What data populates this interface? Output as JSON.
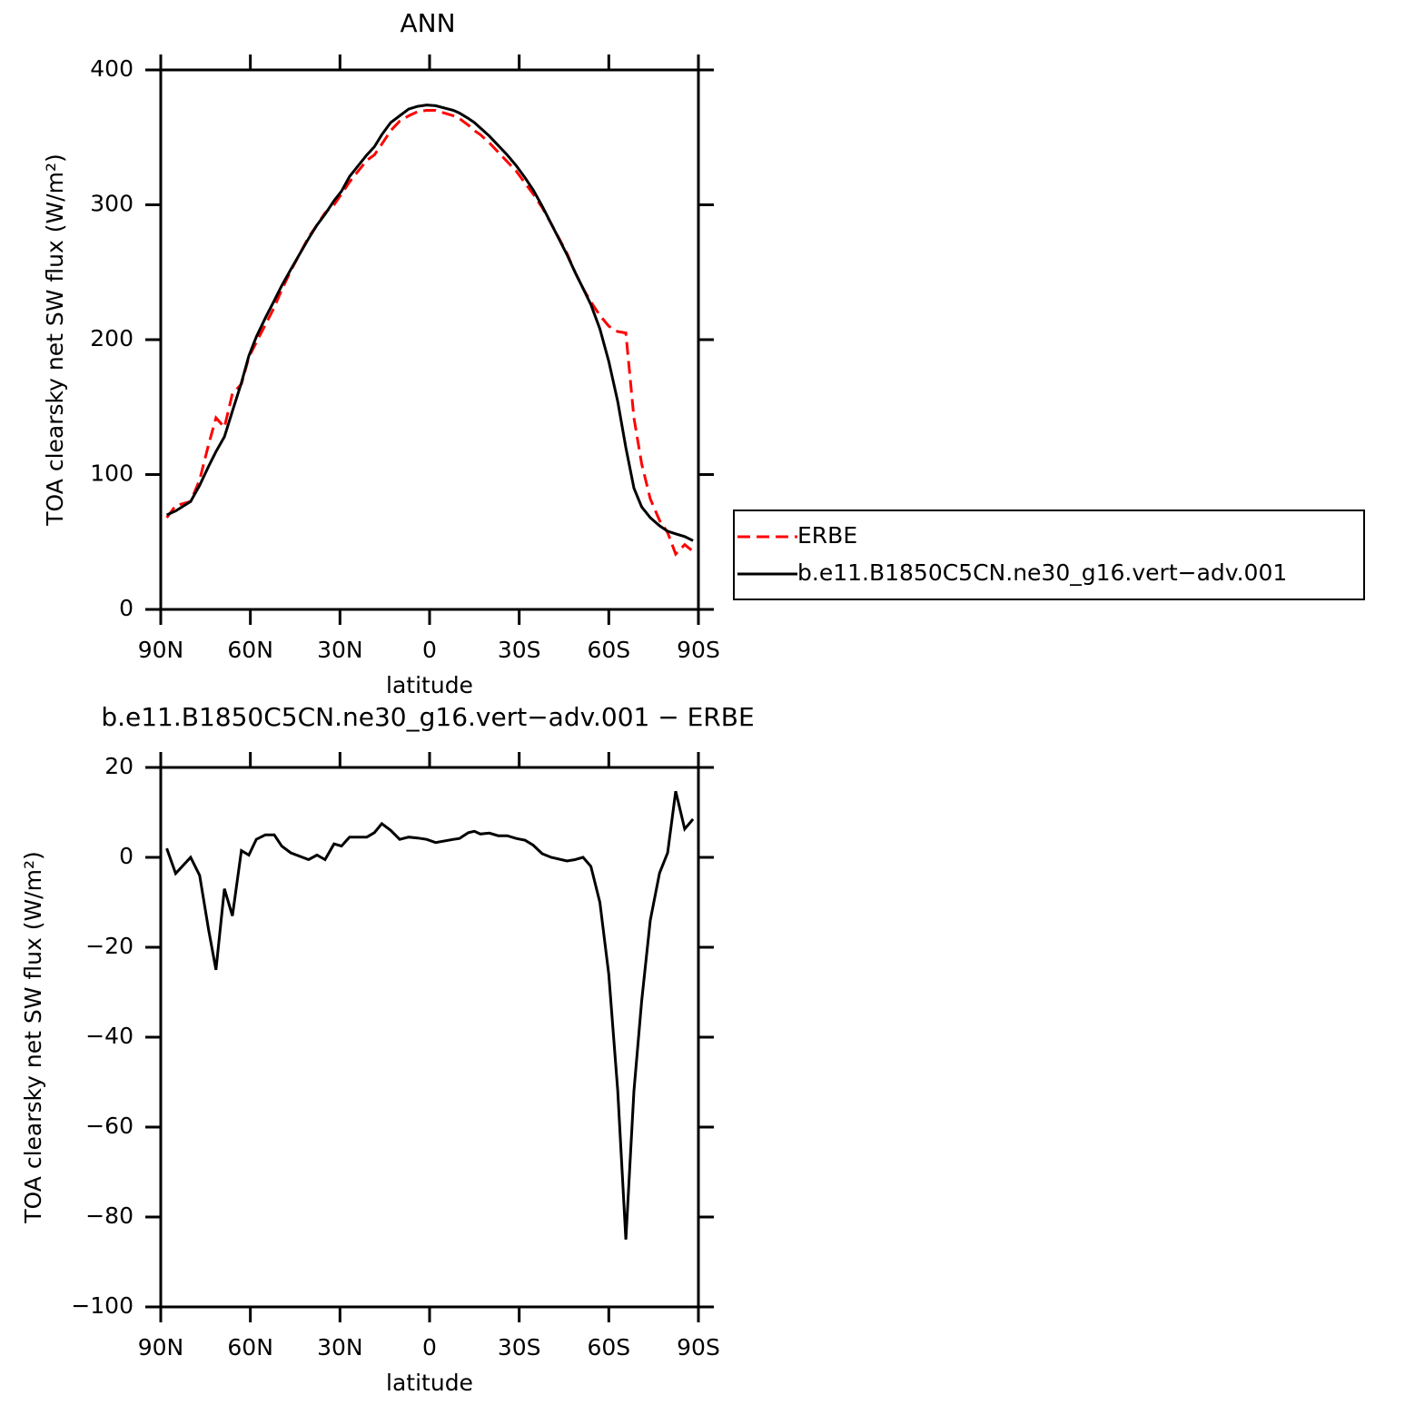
{
  "chart_data": [
    {
      "type": "line",
      "title": "ANN",
      "xlabel": "latitude",
      "ylabel": "TOA clearsky net SW flux (W/m²)",
      "x": [
        88,
        85,
        80,
        77,
        74,
        71.5,
        68.7,
        66,
        63,
        60.5,
        58,
        55,
        52,
        49.5,
        46.5,
        40.5,
        37.7,
        35,
        32,
        29.5,
        26.8,
        21,
        18.5,
        16,
        13,
        10,
        7,
        4,
        1,
        -2,
        -8,
        -10,
        -13,
        -15,
        -17,
        -20,
        -23,
        -26,
        -29,
        -32,
        -34.7,
        -37.7,
        -40.7,
        -46,
        -48.7,
        -51.4,
        -54,
        -57,
        -60,
        -63,
        -65.7,
        -68.4,
        -71,
        -73.9,
        -77,
        -79.7,
        -82.4,
        -85.4,
        -88.2
      ],
      "series": [
        {
          "name": "ERBE",
          "color": "#ff0000",
          "linestyle": "dashed",
          "values": [
            68,
            77,
            80,
            96,
            122,
            142,
            135,
            160,
            167,
            187,
            198,
            211,
            224,
            237,
            251,
            276,
            285,
            294,
            300,
            308,
            317,
            333,
            337,
            345,
            355,
            362,
            366,
            369,
            370,
            370,
            366,
            364,
            359,
            355,
            352,
            346,
            339,
            332,
            325,
            316,
            308,
            298,
            286,
            264,
            250,
            238,
            228,
            218,
            210,
            206,
            205,
            142,
            108,
            82,
            66,
            57,
            41,
            48,
            43
          ]
        },
        {
          "name": "b.e11.B1850C5CN.ne30_g16.vert−adv.001",
          "color": "#000000",
          "linestyle": "solid",
          "values": [
            70,
            73,
            80,
            92,
            106,
            117,
            128,
            147,
            168,
            188,
            202,
            216,
            229,
            240,
            252,
            275,
            285,
            293,
            303,
            310,
            321,
            337,
            343,
            352,
            361,
            366,
            371,
            373,
            374,
            373.5,
            370,
            368,
            364,
            361,
            357,
            351,
            344,
            337,
            329,
            320,
            311,
            299,
            286,
            263,
            250,
            238,
            226,
            208,
            184,
            154,
            120,
            90,
            76,
            68,
            62,
            58,
            56,
            54,
            51
          ]
        }
      ],
      "xlim": [
        90,
        -90
      ],
      "xticks": [
        {
          "value": 90,
          "label": "90N"
        },
        {
          "value": 60,
          "label": "60N"
        },
        {
          "value": 30,
          "label": "30N"
        },
        0,
        {
          "value": -30,
          "label": "30S"
        },
        {
          "value": -60,
          "label": "60S"
        },
        {
          "value": -90,
          "label": "90S"
        }
      ],
      "ylim": [
        0,
        400
      ],
      "yticks": [
        0,
        100,
        200,
        300,
        400
      ],
      "legend": "right"
    },
    {
      "type": "line",
      "title": "b.e11.B1850C5CN.ne30_g16.vert−adv.001 − ERBE",
      "xlabel": "latitude",
      "ylabel": "TOA clearsky net SW flux (W/m²)",
      "x": [
        88,
        85,
        80,
        77,
        74,
        71.5,
        68.7,
        66,
        63,
        60.5,
        58,
        55,
        52,
        49.5,
        46.5,
        40.5,
        37.7,
        35,
        32,
        29.5,
        26.8,
        21,
        18.5,
        16,
        13,
        10,
        7,
        4,
        1,
        -2,
        -8,
        -10,
        -13,
        -15,
        -17,
        -20,
        -23,
        -26,
        -29,
        -32,
        -34.7,
        -37.7,
        -40.7,
        -46,
        -48.7,
        -51.4,
        -54,
        -57,
        -60,
        -63,
        -65.7,
        -68.4,
        -71,
        -73.9,
        -77,
        -79.7,
        -82.4,
        -85.4,
        -88.2
      ],
      "values": [
        2,
        -3.6,
        0,
        -4,
        -16,
        -25,
        -7,
        -13,
        1.5,
        0.5,
        4,
        5,
        5,
        2.5,
        1,
        -0.5,
        0.5,
        -0.5,
        3,
        2.5,
        4.5,
        4.5,
        5.5,
        7.5,
        6,
        4,
        4.5,
        4.3,
        4,
        3.3,
        4,
        4.2,
        5.5,
        5.8,
        5.2,
        5.4,
        4.8,
        4.8,
        4.2,
        3.8,
        2.7,
        0.8,
        0,
        -0.8,
        -0.5,
        0,
        -2,
        -10,
        -26,
        -52,
        -85,
        -52,
        -32,
        -14,
        -3.5,
        1,
        14.7,
        6.3,
        8.5
      ],
      "color": "#000000",
      "xlim": [
        90,
        -90
      ],
      "xticks": [
        {
          "value": 90,
          "label": "90N"
        },
        {
          "value": 60,
          "label": "60N"
        },
        {
          "value": 30,
          "label": "30N"
        },
        0,
        {
          "value": -30,
          "label": "30S"
        },
        {
          "value": -60,
          "label": "60S"
        },
        {
          "value": -90,
          "label": "90S"
        }
      ],
      "ylim": [
        -100,
        20
      ],
      "yticks": [
        {
          "value": -100,
          "label": "−100"
        },
        {
          "value": -80,
          "label": "−80"
        },
        {
          "value": -60,
          "label": "−60"
        },
        {
          "value": -40,
          "label": "−40"
        },
        {
          "value": -20,
          "label": "−20"
        },
        0,
        20
      ]
    }
  ]
}
